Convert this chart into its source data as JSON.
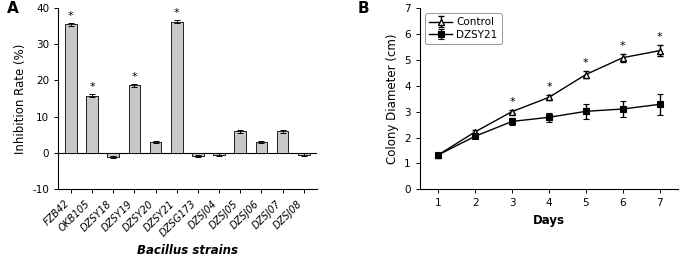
{
  "bar_labels": [
    "FZB42",
    "OKB105",
    "DZSY18",
    "DZSY19",
    "DZSY20",
    "DZSY21",
    "DZSG173",
    "DZSJ04",
    "DZSJ05",
    "DZSJ06",
    "DZSJ07",
    "DZSJ08"
  ],
  "bar_values": [
    35.5,
    15.8,
    -1.0,
    18.7,
    3.1,
    36.2,
    -0.8,
    -0.5,
    6.0,
    3.0,
    6.0,
    -0.5
  ],
  "bar_errors": [
    0.4,
    0.4,
    0.3,
    0.4,
    0.3,
    0.4,
    0.4,
    0.4,
    0.4,
    0.3,
    0.4,
    0.4
  ],
  "bar_significant": [
    true,
    true,
    false,
    true,
    false,
    true,
    false,
    false,
    false,
    false,
    false,
    false
  ],
  "bar_color": "#c8c8c8",
  "bar_edge_color": "#000000",
  "ylabel_A": "Inhibition Rate (%)",
  "xlabel_A": "Bacillus strains",
  "ylim_A": [
    -10,
    40
  ],
  "yticks_A": [
    -10,
    0,
    10,
    20,
    30,
    40
  ],
  "panel_A_label": "A",
  "control_days": [
    1,
    2,
    3,
    4,
    5,
    6,
    7
  ],
  "control_values": [
    1.33,
    2.22,
    3.0,
    3.55,
    4.43,
    5.08,
    5.35
  ],
  "control_errors": [
    0.04,
    0.07,
    0.07,
    0.1,
    0.15,
    0.15,
    0.22
  ],
  "dzsy21_values": [
    1.33,
    2.05,
    2.62,
    2.78,
    3.01,
    3.1,
    3.28
  ],
  "dzsy21_errors": [
    0.04,
    0.07,
    0.12,
    0.18,
    0.28,
    0.3,
    0.4
  ],
  "line_significant_days": [
    3,
    4,
    5,
    6,
    7
  ],
  "ylabel_B": "Colony Diameter (cm)",
  "xlabel_B": "Days",
  "ylim_B": [
    0,
    7
  ],
  "yticks_B": [
    0,
    1,
    2,
    3,
    4,
    5,
    6,
    7
  ],
  "panel_B_label": "B",
  "legend_labels": [
    "Control",
    "DZSY21"
  ],
  "bg_color": "#ffffff",
  "text_color": "#000000",
  "line_color": "#000000",
  "star_fontsize": 8,
  "axis_fontsize": 7.5,
  "label_fontsize": 8.5,
  "panel_label_fontsize": 11
}
